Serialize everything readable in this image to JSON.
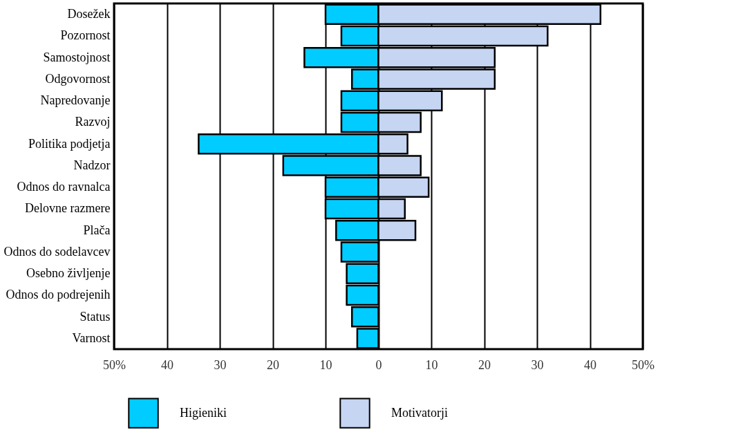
{
  "chart_data": {
    "type": "bar",
    "orientation": "horizontal",
    "categories": [
      "Dosežek",
      "Pozornost",
      "Samostojnost",
      "Odgovornost",
      "Napredovanje",
      "Razvoj",
      "Politika podjetja",
      "Nadzor",
      "Odnos do ravnalca",
      "Delovne razmere",
      "Plača",
      "Odnos do sodelavcev",
      "Osebno življenje",
      "Odnos do podrejenih",
      "Status",
      "Varnost"
    ],
    "series": [
      {
        "name": "Higieniki",
        "color": "#00ccff",
        "values": [
          -10,
          -7,
          -14,
          -5,
          -7,
          -7,
          -34,
          -18,
          -10,
          -10,
          -8,
          -7,
          -6,
          -6,
          -5,
          -4
        ]
      },
      {
        "name": "Motivatorji",
        "color": "#c5d5f2",
        "values": [
          42,
          32,
          22,
          22,
          12,
          8,
          5.5,
          8,
          9.5,
          5,
          7,
          null,
          null,
          null,
          null,
          null
        ]
      }
    ],
    "xlim": [
      -50,
      50
    ],
    "xticks": [
      {
        "value": -50,
        "label": "50%"
      },
      {
        "value": -40,
        "label": "40"
      },
      {
        "value": -30,
        "label": "30"
      },
      {
        "value": -20,
        "label": "20"
      },
      {
        "value": -10,
        "label": "10"
      },
      0,
      10,
      20,
      30,
      40,
      {
        "value": 50,
        "label": "50%"
      }
    ],
    "grid": "x",
    "legend": "bottom",
    "stacked": true
  }
}
